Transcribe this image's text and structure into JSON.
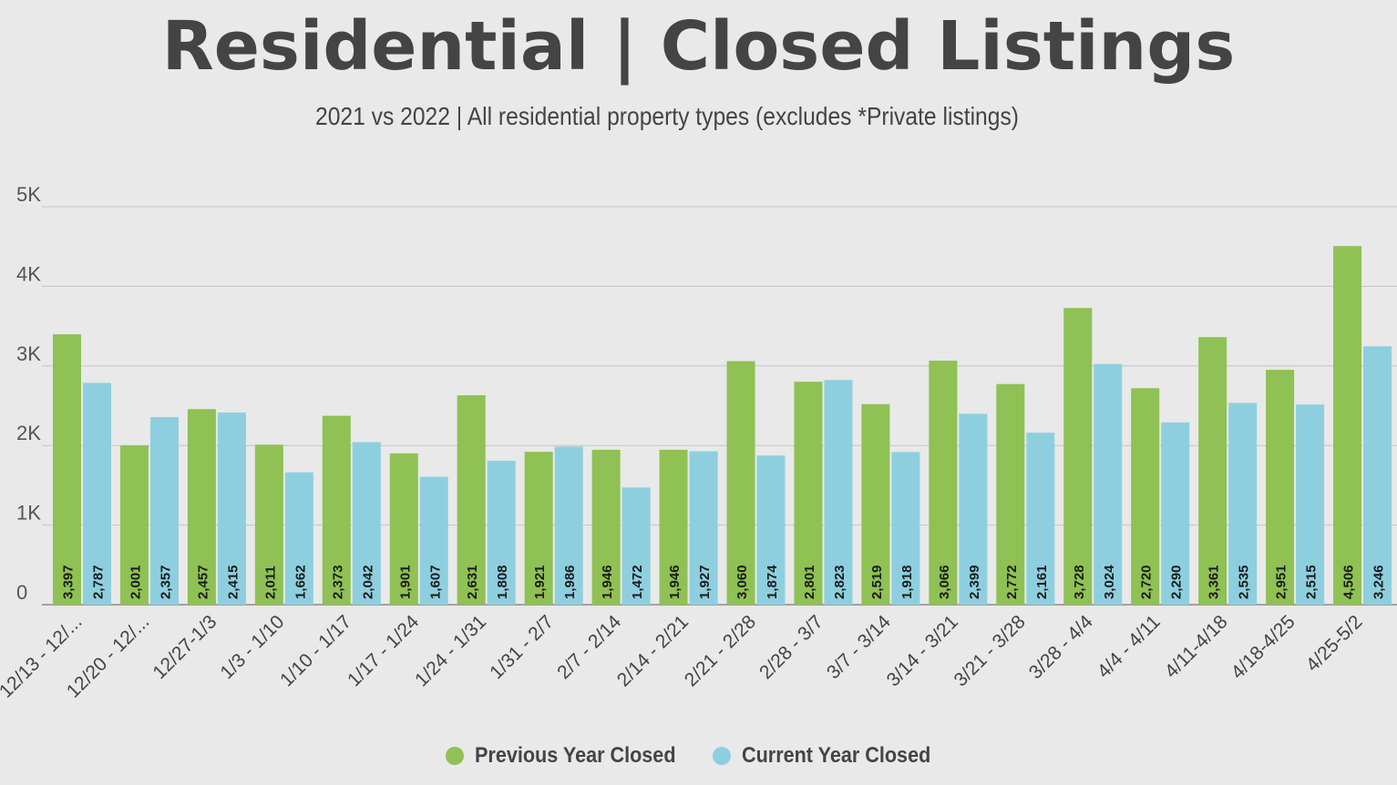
{
  "chart_data": {
    "type": "bar",
    "title": "Residential | Closed Listings",
    "subtitle": "2021 vs 2022 | All residential property types (excludes *Private listings)",
    "categories": [
      "12/13 - 12/...",
      "12/20 - 12/...",
      "12/27-1/3",
      "1/3 - 1/10",
      "1/10 - 1/17",
      "1/17 - 1/24",
      "1/24 - 1/31",
      "1/31 - 2/7",
      "2/7 - 2/14",
      "2/14 - 2/21",
      "2/21 - 2/28",
      "2/28 - 3/7",
      "3/7 - 3/14",
      "3/14 - 3/21",
      "3/21 - 3/28",
      "3/28 - 4/4",
      "4/4 - 4/11",
      "4/11-4/18",
      "4/18-4/25",
      "4/25-5/2"
    ],
    "series": [
      {
        "name": "Previous Year Closed",
        "color": "#8fc154",
        "values": [
          3397,
          2001,
          2457,
          2011,
          2373,
          1901,
          2631,
          1921,
          1946,
          1946,
          3060,
          2801,
          2519,
          3066,
          2772,
          3728,
          2720,
          3361,
          2951,
          4506
        ],
        "labels": [
          "3,397",
          "2,001",
          "2,457",
          "2,011",
          "2,373",
          "1,901",
          "2,631",
          "1,921",
          "1,946",
          "1,946",
          "3,060",
          "2,801",
          "2,519",
          "3,066",
          "2,772",
          "3,728",
          "2,720",
          "3,361",
          "2,951",
          "4,506"
        ]
      },
      {
        "name": "Current Year Closed",
        "color": "#8ecfdf",
        "values": [
          2787,
          2357,
          2415,
          1662,
          2042,
          1607,
          1808,
          1986,
          1472,
          1927,
          1874,
          2823,
          1918,
          2399,
          2161,
          3024,
          2290,
          2535,
          2515,
          3246
        ],
        "labels": [
          "2,787",
          "2,357",
          "2,415",
          "1,662",
          "2,042",
          "1,607",
          "1,808",
          "1,986",
          "1,472",
          "1,927",
          "1,874",
          "2,823",
          "1,918",
          "2,399",
          "2,161",
          "3,024",
          "2,290",
          "2,535",
          "2,515",
          "3,246"
        ]
      }
    ],
    "ylim": [
      0,
      5000
    ],
    "yticks": [
      0,
      1000,
      2000,
      3000,
      4000,
      5000
    ],
    "ytick_labels": [
      "0",
      "1K",
      "2K",
      "3K",
      "4K",
      "5K"
    ],
    "xlabel": "",
    "ylabel": "",
    "grid": true,
    "legend_position": "bottom-center"
  }
}
